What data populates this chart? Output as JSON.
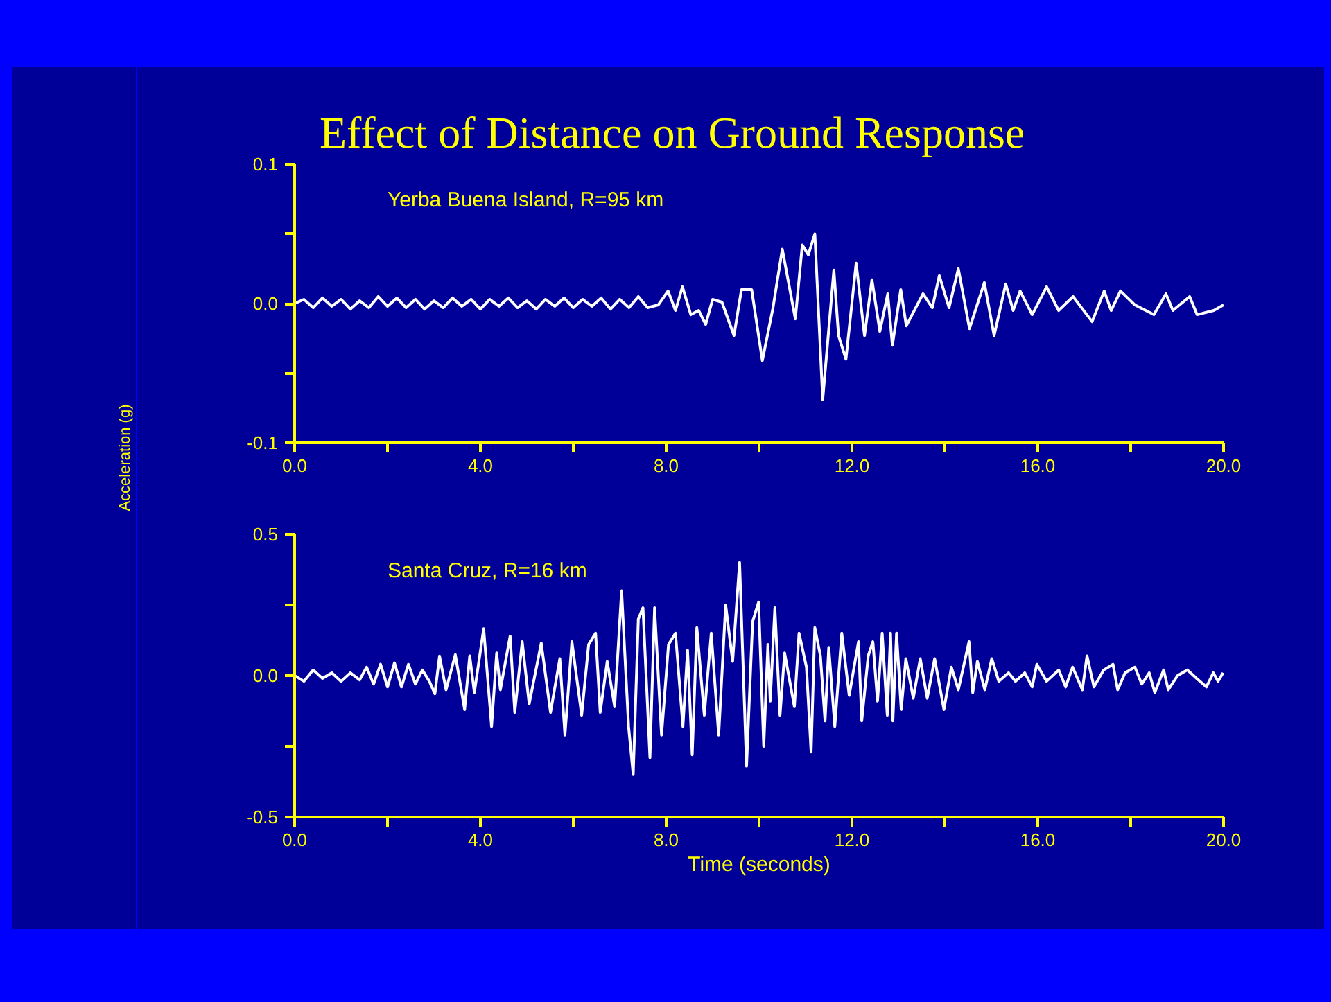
{
  "chart_data": [
    {
      "type": "line",
      "title": "Effect of Distance on Ground Response",
      "ylabel": "Acceleration (g)",
      "grid": false,
      "line_style": "solid",
      "marker": "none",
      "xlim": [
        0,
        20
      ],
      "ylim": [
        -0.1,
        0.1
      ],
      "xticks": [
        {
          "value": 0,
          "label": "0.0"
        },
        {
          "value": 2,
          "label": null
        },
        {
          "value": 4,
          "label": "4.0"
        },
        {
          "value": 6,
          "label": null
        },
        {
          "value": 8,
          "label": "8.0"
        },
        {
          "value": 10,
          "label": null
        },
        {
          "value": 12,
          "label": "12.0"
        },
        {
          "value": 14,
          "label": null
        },
        {
          "value": 16,
          "label": "16.0"
        },
        {
          "value": 18,
          "label": null
        },
        {
          "value": 20,
          "label": "20.0"
        }
      ],
      "yticks": [
        {
          "value": -0.1,
          "label": "-0.1"
        },
        {
          "value": -0.05,
          "label": null
        },
        {
          "value": 0,
          "label": "0.0"
        },
        {
          "value": 0.05,
          "label": null
        },
        {
          "value": 0.1,
          "label": "0.1"
        }
      ],
      "series": [
        {
          "name": "Yerba Buena Island, R=95 km",
          "color": "#ffffff",
          "x": [
            0,
            0.2,
            0.4,
            0.6,
            0.8,
            1.0,
            1.2,
            1.4,
            1.6,
            1.8,
            2.0,
            2.2,
            2.4,
            2.6,
            2.8,
            3.0,
            3.2,
            3.4,
            3.6,
            3.8,
            4.0,
            4.2,
            4.4,
            4.6,
            4.8,
            5.0,
            5.2,
            5.4,
            5.6,
            5.8,
            6.0,
            6.2,
            6.4,
            6.6,
            6.8,
            7.0,
            7.2,
            7.4,
            7.6,
            7.83,
            8.04,
            8.2,
            8.35,
            8.53,
            8.7,
            8.85,
            9.0,
            9.2,
            9.46,
            9.62,
            9.77,
            9.84,
            10.07,
            10.3,
            10.5,
            10.78,
            10.93,
            11.06,
            11.2,
            11.37,
            11.61,
            11.71,
            11.87,
            12.09,
            12.27,
            12.43,
            12.6,
            12.77,
            12.87,
            13.05,
            13.17,
            13.53,
            13.73,
            13.88,
            14.09,
            14.29,
            14.53,
            14.85,
            15.06,
            15.31,
            15.47,
            15.62,
            15.88,
            16.19,
            16.45,
            16.76,
            17.17,
            17.43,
            17.58,
            17.78,
            18.09,
            18.5,
            18.76,
            18.91,
            19.27,
            19.43,
            19.79,
            20.0
          ],
          "values": [
            0,
            0.003,
            -0.003,
            0.004,
            -0.002,
            0.003,
            -0.004,
            0.002,
            -0.003,
            0.005,
            -0.002,
            0.004,
            -0.003,
            0.003,
            -0.004,
            0.002,
            -0.003,
            0.004,
            -0.002,
            0.003,
            -0.004,
            0.003,
            -0.002,
            0.004,
            -0.003,
            0.002,
            -0.004,
            0.003,
            -0.002,
            0.004,
            -0.003,
            0.003,
            -0.002,
            0.004,
            -0.004,
            0.003,
            -0.003,
            0.005,
            -0.003,
            -0.001,
            0.009,
            -0.005,
            0.012,
            -0.008,
            -0.005,
            -0.015,
            0.003,
            0.001,
            -0.023,
            0.01,
            0.01,
            0.01,
            -0.041,
            -0.003,
            0.039,
            -0.011,
            0.042,
            0.035,
            0.05,
            -0.069,
            0.024,
            -0.023,
            -0.04,
            0.029,
            -0.023,
            0.017,
            -0.02,
            0.007,
            -0.03,
            0.01,
            -0.016,
            0.007,
            -0.003,
            0.02,
            -0.003,
            0.025,
            -0.018,
            0.015,
            -0.023,
            0.014,
            -0.005,
            0.009,
            -0.008,
            0.012,
            -0.005,
            0.005,
            -0.013,
            0.009,
            -0.005,
            0.009,
            -0.001,
            -0.008,
            0.007,
            -0.005,
            0.005,
            -0.008,
            -0.005,
            -0.001
          ]
        }
      ]
    },
    {
      "type": "line",
      "xlabel": "Time (seconds)",
      "grid": false,
      "line_style": "solid",
      "marker": "none",
      "xlim": [
        0,
        20
      ],
      "ylim": [
        -0.5,
        0.5
      ],
      "xticks": [
        {
          "value": 0,
          "label": "0.0"
        },
        {
          "value": 2,
          "label": null
        },
        {
          "value": 4,
          "label": "4.0"
        },
        {
          "value": 6,
          "label": null
        },
        {
          "value": 8,
          "label": "8.0"
        },
        {
          "value": 10,
          "label": null
        },
        {
          "value": 12,
          "label": "12.0"
        },
        {
          "value": 14,
          "label": null
        },
        {
          "value": 16,
          "label": "16.0"
        },
        {
          "value": 18,
          "label": null
        },
        {
          "value": 20,
          "label": "20.0"
        }
      ],
      "yticks": [
        {
          "value": -0.5,
          "label": "-0.5"
        },
        {
          "value": -0.25,
          "label": null
        },
        {
          "value": 0,
          "label": "0.0"
        },
        {
          "value": 0.25,
          "label": null
        },
        {
          "value": 0.5,
          "label": "0.5"
        }
      ],
      "series": [
        {
          "name": "Santa Cruz, R=16 km",
          "color": "#ffffff",
          "x": [
            0,
            0.2,
            0.4,
            0.6,
            0.8,
            1.0,
            1.2,
            1.4,
            1.55,
            1.7,
            1.85,
            2.0,
            2.15,
            2.3,
            2.45,
            2.6,
            2.75,
            2.9,
            3.02,
            3.12,
            3.26,
            3.46,
            3.66,
            3.77,
            3.87,
            4.07,
            4.24,
            4.35,
            4.43,
            4.64,
            4.74,
            4.9,
            5.05,
            5.31,
            5.51,
            5.71,
            5.82,
            5.97,
            6.18,
            6.33,
            6.48,
            6.58,
            6.73,
            6.89,
            7.04,
            7.19,
            7.29,
            7.4,
            7.5,
            7.65,
            7.75,
            7.9,
            8.05,
            8.2,
            8.36,
            8.46,
            8.56,
            8.66,
            8.82,
            8.97,
            9.13,
            9.28,
            9.43,
            9.58,
            9.73,
            9.86,
            9.99,
            10.1,
            10.19,
            10.24,
            10.34,
            10.45,
            10.55,
            10.76,
            10.86,
            11.02,
            11.12,
            11.2,
            11.32,
            11.42,
            11.5,
            11.63,
            11.78,
            11.94,
            12.14,
            12.21,
            12.35,
            12.45,
            12.55,
            12.65,
            12.76,
            12.83,
            12.88,
            12.96,
            13.06,
            13.16,
            13.32,
            13.47,
            13.62,
            13.78,
            13.98,
            14.14,
            14.29,
            14.52,
            14.6,
            14.7,
            14.86,
            15.01,
            15.16,
            15.37,
            15.52,
            15.72,
            15.88,
            15.98,
            16.19,
            16.45,
            16.6,
            16.75,
            16.96,
            17.06,
            17.21,
            17.42,
            17.62,
            17.72,
            17.88,
            18.09,
            18.24,
            18.4,
            18.52,
            18.71,
            18.81,
            19.01,
            19.22,
            19.42,
            19.63,
            19.78,
            19.88,
            19.99
          ],
          "values": [
            0,
            -0.02,
            0.02,
            -0.01,
            0.01,
            -0.02,
            0.01,
            -0.015,
            0.03,
            -0.03,
            0.04,
            -0.04,
            0.045,
            -0.04,
            0.04,
            -0.03,
            0.02,
            -0.02,
            -0.064,
            0.069,
            -0.05,
            0.074,
            -0.12,
            0.07,
            -0.06,
            0.166,
            -0.18,
            0.08,
            -0.05,
            0.14,
            -0.13,
            0.12,
            -0.1,
            0.115,
            -0.13,
            0.06,
            -0.21,
            0.12,
            -0.14,
            0.11,
            0.15,
            -0.13,
            0.05,
            -0.11,
            0.3,
            -0.18,
            -0.35,
            0.2,
            0.24,
            -0.29,
            0.24,
            -0.21,
            0.11,
            0.15,
            -0.18,
            0.09,
            -0.28,
            0.17,
            -0.14,
            0.15,
            -0.21,
            0.25,
            0.05,
            0.4,
            -0.32,
            0.19,
            0.26,
            -0.25,
            0.11,
            -0.09,
            0.24,
            -0.14,
            0.08,
            -0.11,
            0.15,
            0.03,
            -0.27,
            0.17,
            0.07,
            -0.16,
            0.1,
            -0.18,
            0.15,
            -0.07,
            0.12,
            -0.16,
            0.07,
            0.12,
            -0.09,
            0.15,
            -0.14,
            0.15,
            -0.16,
            0.15,
            -0.12,
            0.06,
            -0.08,
            0.06,
            -0.08,
            0.06,
            -0.12,
            0.03,
            -0.05,
            0.12,
            -0.06,
            0.05,
            -0.05,
            0.06,
            -0.02,
            0.01,
            -0.02,
            0.01,
            -0.04,
            0.04,
            -0.02,
            0.02,
            -0.04,
            0.03,
            -0.05,
            0.07,
            -0.04,
            0.02,
            0.04,
            -0.05,
            0.01,
            0.03,
            -0.03,
            0.01,
            -0.06,
            0.02,
            -0.05,
            0.0,
            0.02,
            -0.01,
            -0.04,
            0.01,
            -0.02,
            0.01
          ]
        }
      ]
    }
  ]
}
